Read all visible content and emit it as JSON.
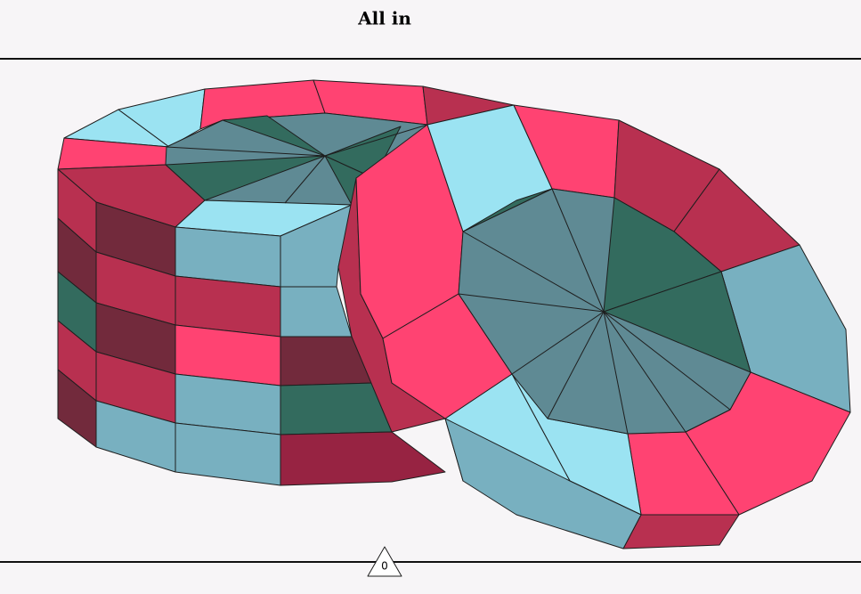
{
  "header": {
    "title": "All in"
  },
  "footer": {
    "counter": "0"
  }
}
